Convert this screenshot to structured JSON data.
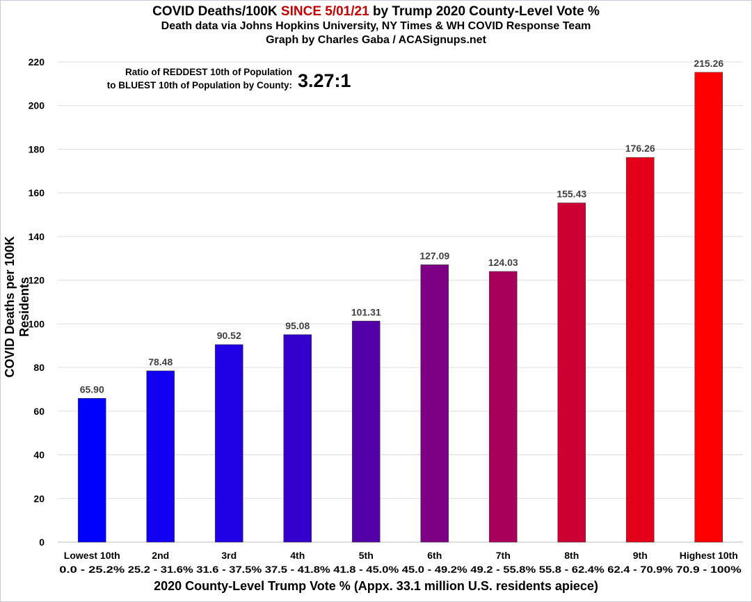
{
  "chart_data": {
    "type": "bar",
    "title_part1": "COVID Deaths/100K ",
    "title_highlight": "SINCE 5/01/21",
    "title_part2": " by Trump 2020 County-Level Vote %",
    "subtitle1": "Death data via Johns Hopkins University, NY Times & WH COVID Response Team",
    "subtitle2": "Graph by Charles Gaba / ACASignups.net",
    "annotation_line1": "Ratio of REDDEST 10th of Population",
    "annotation_line2": "to BLUEST 10th of Population by County:",
    "annotation_ratio": "3.27:1",
    "xlabel": "2020 County-Level Trump Vote % (Appx. 33.1 million U.S. residents apiece)",
    "ylabel": "COVID Deaths per 100K Residents",
    "ylim": [
      0,
      220
    ],
    "yticks": [
      0,
      20,
      40,
      60,
      80,
      100,
      120,
      140,
      160,
      180,
      200,
      220
    ],
    "grid": true,
    "categories": [
      "Lowest 10th",
      "2nd",
      "3rd",
      "4th",
      "5th",
      "6th",
      "7th",
      "8th",
      "9th",
      "Highest 10th"
    ],
    "category_ranges": [
      "0.0 - 25.2%",
      "25.2 - 31.6%",
      "31.6 - 37.5%",
      "37.5 - 41.8%",
      "41.8 - 45.0%",
      "45.0 - 49.2%",
      "49.2 - 55.8%",
      "55.8 - 62.4%",
      "62.4 - 70.9%",
      "70.9 - 100%"
    ],
    "values": [
      65.9,
      78.48,
      90.52,
      95.08,
      101.31,
      127.09,
      124.03,
      155.43,
      176.26,
      215.26
    ],
    "data_labels": [
      "65.90",
      "78.48",
      "90.52",
      "95.08",
      "101.31",
      "127.09",
      "124.03",
      "155.43",
      "176.26",
      "215.26"
    ],
    "colors": [
      "#0000ff",
      "#1200f2",
      "#2000e4",
      "#3300cc",
      "#5400a8",
      "#7d0084",
      "#a8005a",
      "#cc0033",
      "#e5001a",
      "#ff0000"
    ],
    "title_highlight_color": "#c00000"
  }
}
